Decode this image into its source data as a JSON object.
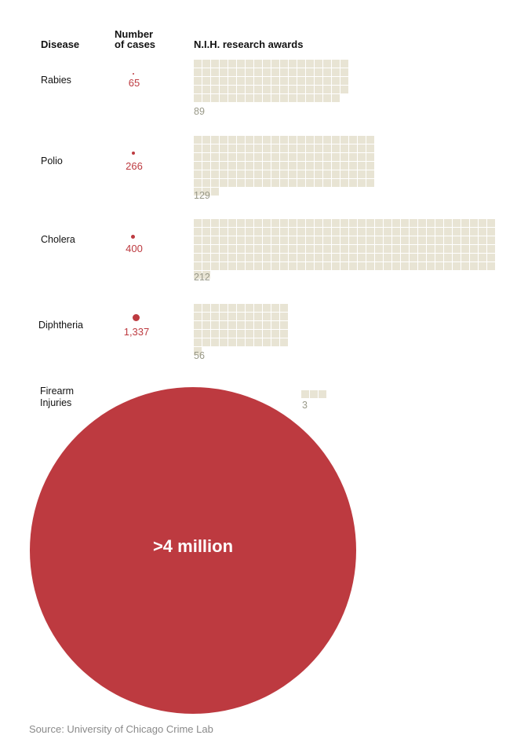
{
  "headers": {
    "disease": "Disease",
    "cases_line1": "Number",
    "cases_line2": "of cases",
    "awards": "N.I.H. research awards"
  },
  "chart_data": {
    "type": "table",
    "rows": [
      {
        "disease": "Rabies",
        "cases": 65,
        "cases_label": "65",
        "awards": 89,
        "awards_label": "89"
      },
      {
        "disease": "Polio",
        "cases": 266,
        "cases_label": "266",
        "awards": 129,
        "awards_label": "129"
      },
      {
        "disease": "Cholera",
        "cases": 400,
        "cases_label": "400",
        "awards": 212,
        "awards_label": "212"
      },
      {
        "disease": "Diphtheria",
        "cases": 1337,
        "cases_label": "1,337",
        "awards": 56,
        "awards_label": "56"
      },
      {
        "disease_line1": "Firearm",
        "disease_line2": "Injuries",
        "cases_label": ">4 million",
        "awards": 3,
        "awards_label": "3"
      }
    ]
  },
  "colors": {
    "cases": "#bd3a40",
    "awards_square": "#e8e4d4",
    "awards_label": "#999988"
  },
  "source": "Source: University of Chicago Crime Lab"
}
